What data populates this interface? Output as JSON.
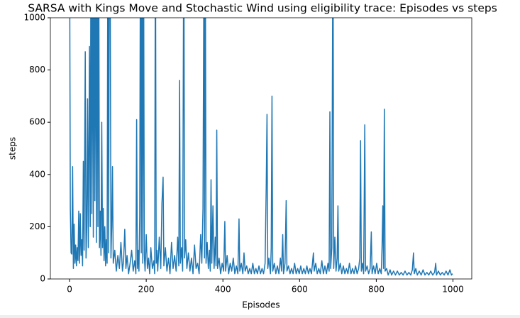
{
  "chart_data": {
    "type": "line",
    "title": "SARSA with Kings Move and Stochastic Wind using eligibility trace: Episodes vs steps",
    "x_label": "Episodes",
    "y_label": "steps",
    "color": "#1f77b4",
    "xlim": [
      -50,
      1049
    ],
    "ylim": [
      0,
      1000
    ],
    "xticks": [
      0,
      200,
      400,
      600,
      800,
      1000
    ],
    "yticks": [
      0,
      200,
      400,
      600,
      800,
      1000
    ],
    "x": [
      0,
      2,
      4,
      6,
      8,
      10,
      12,
      14,
      16,
      18,
      20,
      22,
      24,
      26,
      28,
      30,
      32,
      34,
      36,
      38,
      41,
      43,
      45,
      47,
      49,
      52,
      54,
      56,
      58,
      60,
      62,
      64,
      66,
      68,
      70,
      72,
      74,
      76,
      78,
      80,
      82,
      84,
      86,
      88,
      90,
      92,
      94,
      96,
      98,
      100,
      102,
      104,
      106,
      108,
      110,
      112,
      114,
      118,
      122,
      126,
      130,
      134,
      138,
      141,
      144,
      147,
      150,
      154,
      158,
      162,
      166,
      170,
      173,
      175,
      177,
      179,
      181,
      183,
      185,
      187,
      189,
      191,
      193,
      195,
      197,
      200,
      203,
      206,
      209,
      212,
      216,
      220,
      222,
      224,
      226,
      228,
      230,
      234,
      238,
      241,
      244,
      246,
      250,
      254,
      258,
      262,
      266,
      270,
      274,
      278,
      282,
      285,
      287,
      289,
      292,
      295,
      298,
      300,
      303,
      306,
      310,
      314,
      318,
      322,
      326,
      330,
      334,
      338,
      342,
      345,
      348,
      351,
      352,
      354,
      356,
      359,
      362,
      365,
      367,
      369,
      371,
      374,
      377,
      380,
      382,
      384,
      386,
      390,
      394,
      398,
      402,
      405,
      407,
      411,
      415,
      419,
      423,
      427,
      431,
      435,
      439,
      442,
      444,
      448,
      452,
      455,
      458,
      462,
      466,
      470,
      474,
      478,
      482,
      486,
      490,
      494,
      498,
      502,
      506,
      510,
      513,
      515,
      517,
      520,
      524,
      526,
      528,
      530,
      534,
      538,
      542,
      546,
      550,
      553,
      556,
      558,
      562,
      565,
      567,
      571,
      575,
      579,
      583,
      587,
      591,
      595,
      599,
      603,
      607,
      611,
      615,
      619,
      623,
      627,
      631,
      636,
      638,
      642,
      646,
      650,
      654,
      658,
      662,
      666,
      670,
      674,
      677,
      679,
      681,
      684,
      687,
      689,
      692,
      695,
      698,
      700,
      702,
      706,
      710,
      714,
      718,
      722,
      726,
      730,
      734,
      738,
      742,
      746,
      750,
      754,
      757,
      759,
      761,
      764,
      767,
      770,
      772,
      776,
      780,
      784,
      787,
      789,
      793,
      797,
      801,
      805,
      809,
      813,
      815,
      817,
      819,
      821,
      823,
      827,
      831,
      836,
      840,
      845,
      850,
      855,
      860,
      865,
      870,
      875,
      880,
      885,
      890,
      894,
      897,
      899,
      903,
      907,
      912,
      917,
      922,
      927,
      932,
      937,
      942,
      947,
      952,
      955,
      957,
      962,
      967,
      972,
      977,
      982,
      987,
      992,
      996,
      999
    ],
    "values": [
      1400,
      270,
      100,
      95,
      430,
      40,
      210,
      60,
      130,
      50,
      120,
      70,
      260,
      60,
      250,
      90,
      150,
      50,
      450,
      110,
      870,
      80,
      200,
      690,
      120,
      890,
      200,
      1400,
      250,
      1400,
      160,
      1400,
      300,
      1400,
      140,
      1400,
      200,
      1400,
      120,
      260,
      90,
      600,
      120,
      270,
      70,
      200,
      50,
      150,
      60,
      1400,
      100,
      1400,
      1200,
      80,
      200,
      430,
      60,
      110,
      30,
      90,
      40,
      140,
      30,
      70,
      190,
      40,
      90,
      20,
      60,
      110,
      30,
      70,
      20,
      610,
      40,
      110,
      30,
      240,
      1400,
      100,
      1400,
      60,
      1400,
      90,
      30,
      170,
      40,
      80,
      20,
      120,
      40,
      70,
      20,
      1400,
      60,
      110,
      30,
      160,
      40,
      290,
      390,
      50,
      120,
      30,
      80,
      20,
      140,
      40,
      90,
      30,
      160,
      50,
      760,
      60,
      120,
      30,
      1400,
      80,
      150,
      40,
      100,
      30,
      80,
      20,
      130,
      40,
      60,
      20,
      170,
      60,
      270,
      1400,
      80,
      1400,
      60,
      140,
      40,
      110,
      30,
      380,
      60,
      280,
      40,
      160,
      50,
      570,
      40,
      80,
      20,
      60,
      30,
      220,
      30,
      90,
      20,
      60,
      30,
      80,
      20,
      50,
      20,
      230,
      30,
      60,
      20,
      100,
      30,
      50,
      20,
      40,
      20,
      60,
      20,
      40,
      20,
      50,
      20,
      40,
      20,
      60,
      360,
      630,
      40,
      80,
      20,
      120,
      700,
      30,
      60,
      20,
      50,
      20,
      80,
      30,
      170,
      20,
      60,
      300,
      30,
      50,
      20,
      40,
      20,
      60,
      20,
      40,
      20,
      50,
      20,
      40,
      20,
      50,
      20,
      40,
      20,
      100,
      30,
      60,
      20,
      40,
      20,
      70,
      20,
      50,
      20,
      60,
      30,
      640,
      40,
      120,
      1400,
      40,
      160,
      30,
      80,
      280,
      30,
      60,
      20,
      50,
      20,
      40,
      20,
      60,
      20,
      40,
      20,
      50,
      20,
      40,
      80,
      530,
      30,
      60,
      20,
      590,
      30,
      50,
      20,
      40,
      180,
      20,
      50,
      20,
      60,
      20,
      40,
      20,
      120,
      280,
      40,
      650,
      30,
      40,
      15,
      35,
      15,
      30,
      15,
      30,
      15,
      25,
      15,
      30,
      15,
      25,
      15,
      35,
      100,
      20,
      40,
      15,
      30,
      15,
      35,
      15,
      25,
      15,
      30,
      15,
      25,
      60,
      15,
      30,
      15,
      25,
      15,
      30,
      15,
      35,
      15,
      20
    ]
  }
}
